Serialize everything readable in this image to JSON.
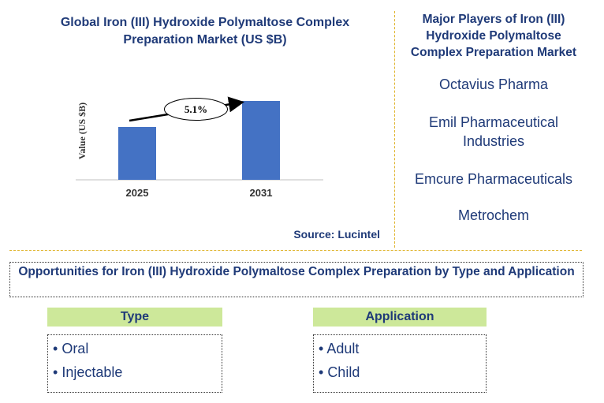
{
  "chart_data": {
    "type": "bar",
    "title": "Global Iron (III) Hydroxide Polymaltose Complex Preparation Market (US $B)",
    "ylabel": "Value (US $B)",
    "categories": [
      "2025",
      "2031"
    ],
    "values": [
      0.67,
      1.0
    ],
    "ylim": [
      0,
      1.0
    ],
    "annotation": "5.1%",
    "bar_color": "#4472c4"
  },
  "source": "Source: Lucintel",
  "players": {
    "title": "Major Players of Iron (III) Hydroxide Polymaltose Complex Preparation Market",
    "items": [
      "Octavius Pharma",
      "Emil Pharmaceutical Industries",
      "Emcure Pharmaceuticals",
      "Metrochem"
    ]
  },
  "opportunities": {
    "title": "Opportunities for Iron (III) Hydroxide Polymaltose Complex Preparation by Type and Application",
    "type_header": "Type",
    "type_items": [
      "Oral",
      "Injectable"
    ],
    "application_header": "Application",
    "application_items": [
      "Adult",
      "Child"
    ]
  }
}
